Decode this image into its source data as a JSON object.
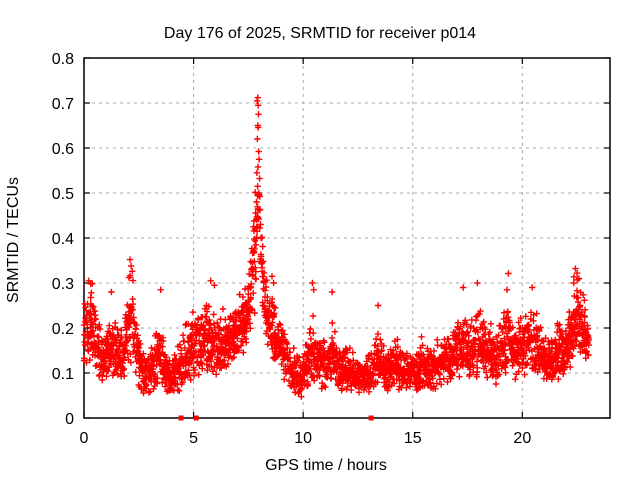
{
  "window": {
    "title": "Day 176 of 2025, SRMTID for receiver p014"
  },
  "colors": {
    "marker": "#ff0000",
    "grid": "#a8a8a8",
    "axis": "#000000",
    "background": "#ffffff",
    "text": "#000000"
  },
  "chart_data": {
    "type": "scatter",
    "title": "Day 176 of 2025, SRMTID for receiver p014",
    "xlabel": "GPS time / hours",
    "ylabel": "SRMTID / TECUs",
    "xlim": [
      0,
      24
    ],
    "ylim": [
      0,
      0.8
    ],
    "xticks": [
      0,
      5,
      10,
      15,
      20
    ],
    "xtick_labels": [
      "0",
      "5",
      "10",
      "15",
      "20"
    ],
    "yticks": [
      0,
      0.1,
      0.2,
      0.3,
      0.4,
      0.5,
      0.6,
      0.7,
      0.8
    ],
    "ytick_labels": [
      "0",
      "0.1",
      "0.2",
      "0.3",
      "0.4",
      "0.5",
      "0.6",
      "0.7",
      "0.8"
    ],
    "grid": true,
    "grid_style": "dashed",
    "legend": false,
    "marker": "plus",
    "series_name": "SRMTID",
    "x_start": 0.0,
    "x_end": 23.05,
    "cadence_hours": 0.0166667,
    "seed": 176,
    "value_floor": 0.042,
    "value_ceil": 0.715,
    "envelope_comment": "piecewise [hour, central value, half-spread] read from the plot",
    "envelope": [
      [
        0.0,
        0.2,
        0.09
      ],
      [
        0.3,
        0.2,
        0.1
      ],
      [
        0.6,
        0.15,
        0.07
      ],
      [
        0.9,
        0.13,
        0.05
      ],
      [
        1.2,
        0.16,
        0.08
      ],
      [
        1.5,
        0.14,
        0.07
      ],
      [
        1.8,
        0.13,
        0.06
      ],
      [
        2.05,
        0.21,
        0.11
      ],
      [
        2.25,
        0.18,
        0.1
      ],
      [
        2.5,
        0.12,
        0.06
      ],
      [
        2.8,
        0.1,
        0.05
      ],
      [
        3.1,
        0.11,
        0.06
      ],
      [
        3.45,
        0.14,
        0.07
      ],
      [
        3.8,
        0.1,
        0.05
      ],
      [
        4.1,
        0.1,
        0.05
      ],
      [
        4.45,
        0.11,
        0.06
      ],
      [
        4.8,
        0.15,
        0.08
      ],
      [
        5.2,
        0.17,
        0.09
      ],
      [
        5.7,
        0.18,
        0.09
      ],
      [
        6.1,
        0.15,
        0.08
      ],
      [
        6.5,
        0.16,
        0.07
      ],
      [
        6.9,
        0.19,
        0.06
      ],
      [
        7.2,
        0.2,
        0.07
      ],
      [
        7.5,
        0.24,
        0.08
      ],
      [
        7.75,
        0.33,
        0.13
      ],
      [
        7.95,
        0.48,
        0.2
      ],
      [
        8.1,
        0.33,
        0.11
      ],
      [
        8.3,
        0.23,
        0.07
      ],
      [
        8.6,
        0.21,
        0.09
      ],
      [
        8.9,
        0.16,
        0.07
      ],
      [
        9.2,
        0.14,
        0.06
      ],
      [
        9.5,
        0.1,
        0.05
      ],
      [
        9.9,
        0.09,
        0.045
      ],
      [
        10.2,
        0.11,
        0.06
      ],
      [
        10.45,
        0.15,
        0.08
      ],
      [
        10.8,
        0.12,
        0.06
      ],
      [
        11.1,
        0.12,
        0.06
      ],
      [
        11.35,
        0.15,
        0.08
      ],
      [
        11.7,
        0.11,
        0.05
      ],
      [
        12.0,
        0.1,
        0.05
      ],
      [
        12.4,
        0.09,
        0.045
      ],
      [
        12.8,
        0.09,
        0.045
      ],
      [
        13.1,
        0.1,
        0.05
      ],
      [
        13.45,
        0.13,
        0.07
      ],
      [
        13.8,
        0.1,
        0.05
      ],
      [
        14.2,
        0.12,
        0.06
      ],
      [
        14.6,
        0.1,
        0.05
      ],
      [
        15.0,
        0.1,
        0.05
      ],
      [
        15.4,
        0.11,
        0.055
      ],
      [
        15.8,
        0.1,
        0.05
      ],
      [
        16.2,
        0.12,
        0.06
      ],
      [
        16.6,
        0.12,
        0.06
      ],
      [
        17.0,
        0.14,
        0.07
      ],
      [
        17.3,
        0.17,
        0.08
      ],
      [
        17.6,
        0.14,
        0.07
      ],
      [
        17.95,
        0.17,
        0.09
      ],
      [
        18.3,
        0.15,
        0.07
      ],
      [
        18.7,
        0.13,
        0.06
      ],
      [
        19.0,
        0.15,
        0.07
      ],
      [
        19.3,
        0.18,
        0.08
      ],
      [
        19.65,
        0.14,
        0.06
      ],
      [
        20.0,
        0.16,
        0.07
      ],
      [
        20.35,
        0.17,
        0.08
      ],
      [
        20.7,
        0.15,
        0.07
      ],
      [
        21.0,
        0.13,
        0.06
      ],
      [
        21.3,
        0.12,
        0.055
      ],
      [
        21.6,
        0.15,
        0.07
      ],
      [
        21.95,
        0.14,
        0.06
      ],
      [
        22.25,
        0.19,
        0.08
      ],
      [
        22.5,
        0.24,
        0.08
      ],
      [
        22.75,
        0.2,
        0.08
      ],
      [
        23.05,
        0.16,
        0.05
      ]
    ],
    "extra_points_comment": "distinct visible extreme points [hour, TECUs]",
    "extra_points": [
      [
        7.9,
        0.705
      ],
      [
        7.93,
        0.712
      ],
      [
        7.95,
        0.695
      ],
      [
        7.96,
        0.675
      ],
      [
        7.93,
        0.65
      ],
      [
        7.91,
        0.62
      ],
      [
        7.97,
        0.592
      ],
      [
        7.99,
        0.575
      ],
      [
        7.94,
        0.558
      ],
      [
        7.89,
        0.545
      ],
      [
        8.01,
        0.532
      ],
      [
        7.92,
        0.515
      ],
      [
        7.98,
        0.5
      ],
      [
        7.87,
        0.48
      ],
      [
        8.03,
        0.462
      ],
      [
        7.95,
        0.445
      ],
      [
        8.06,
        0.43
      ],
      [
        7.9,
        0.415
      ],
      [
        8.08,
        0.4
      ],
      [
        7.85,
        0.385
      ],
      [
        7.75,
        0.37
      ],
      [
        7.8,
        0.42
      ],
      [
        7.68,
        0.345
      ],
      [
        7.62,
        0.33
      ],
      [
        2.1,
        0.352
      ],
      [
        2.15,
        0.338
      ],
      [
        2.2,
        0.326
      ],
      [
        2.05,
        0.312
      ],
      [
        0.22,
        0.305
      ],
      [
        0.3,
        0.298
      ],
      [
        1.25,
        0.28
      ],
      [
        3.5,
        0.285
      ],
      [
        5.78,
        0.305
      ],
      [
        5.95,
        0.295
      ],
      [
        8.58,
        0.315
      ],
      [
        8.65,
        0.3
      ],
      [
        10.42,
        0.3
      ],
      [
        10.48,
        0.285
      ],
      [
        11.32,
        0.28
      ],
      [
        13.42,
        0.25
      ],
      [
        17.3,
        0.29
      ],
      [
        17.95,
        0.3
      ],
      [
        19.3,
        0.285
      ],
      [
        20.45,
        0.29
      ],
      [
        22.42,
        0.332
      ],
      [
        22.5,
        0.322
      ],
      [
        22.58,
        0.31
      ],
      [
        22.35,
        0.3
      ]
    ],
    "square_points_comment": "filled square markers [hour, TECUs]",
    "square_points": [
      [
        4.43,
        0.0
      ],
      [
        5.12,
        0.0
      ],
      [
        13.1,
        0.0
      ],
      [
        22.82,
        0.148
      ]
    ]
  }
}
